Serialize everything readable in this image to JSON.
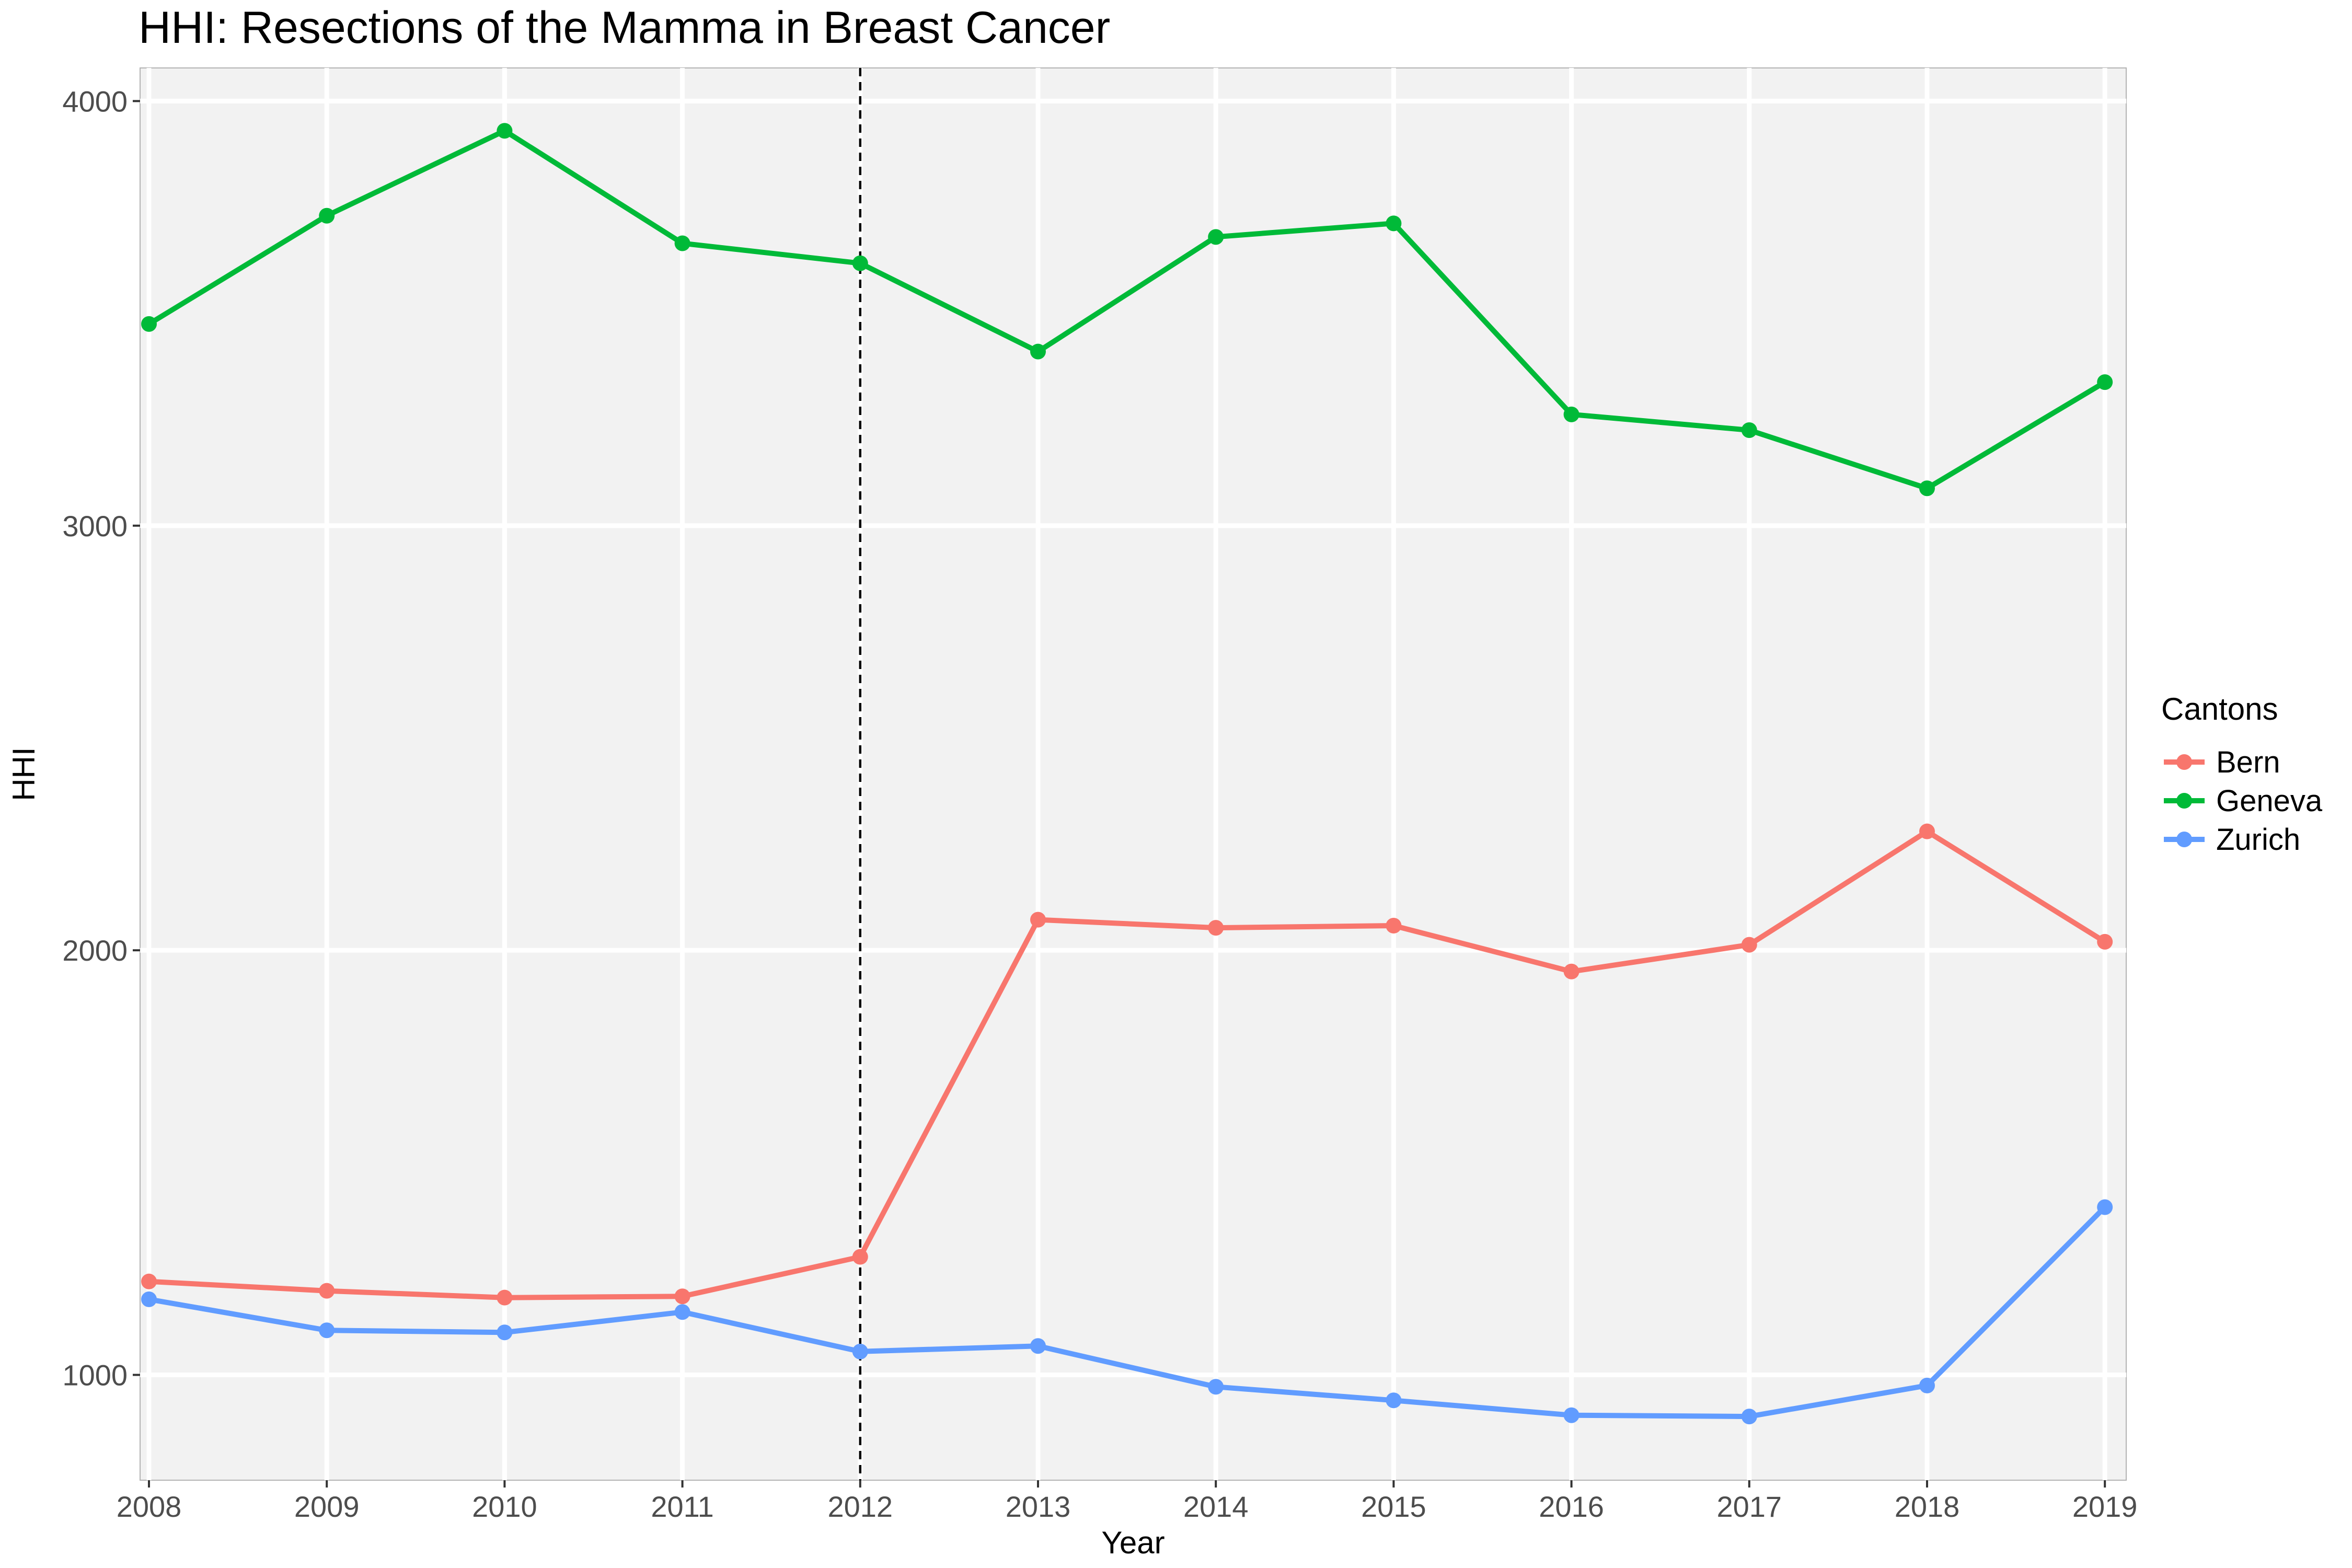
{
  "chart_data": {
    "type": "line",
    "title": "HHI: Resections of the Mamma in Breast Cancer",
    "xlabel": "Year",
    "ylabel": "HHI",
    "x": [
      2008,
      2009,
      2010,
      2011,
      2012,
      2013,
      2014,
      2015,
      2016,
      2017,
      2018,
      2019
    ],
    "x_tick_labels": [
      "2008",
      "2009",
      "2010",
      "2011",
      "2012",
      "2013",
      "2014",
      "2015",
      "2016",
      "2017",
      "2018",
      "2019"
    ],
    "y_ticks": [
      1000,
      2000,
      3000,
      4000
    ],
    "y_tick_labels": [
      "1000",
      "2000",
      "3000",
      "4000"
    ],
    "xlim": [
      2007.95,
      2019.12
    ],
    "ylim": [
      752,
      4078
    ],
    "grid": true,
    "reference_line": {
      "x": 2012,
      "style": "dashed",
      "color": "#000000"
    },
    "legend": {
      "title": "Cantons",
      "position": "right"
    },
    "series": [
      {
        "name": "Bern",
        "color": "#F8766D",
        "values": [
          1220,
          1198,
          1182,
          1185,
          1278,
          2072,
          2053,
          2058,
          1950,
          2013,
          2280,
          2020
        ]
      },
      {
        "name": "Geneva",
        "color": "#00BA38",
        "values": [
          3475,
          3730,
          3930,
          3665,
          3618,
          3410,
          3680,
          3712,
          3262,
          3225,
          3088,
          3338
        ]
      },
      {
        "name": "Zurich",
        "color": "#619CFF",
        "values": [
          1178,
          1105,
          1100,
          1148,
          1055,
          1068,
          972,
          940,
          905,
          902,
          975,
          1395
        ]
      }
    ]
  }
}
